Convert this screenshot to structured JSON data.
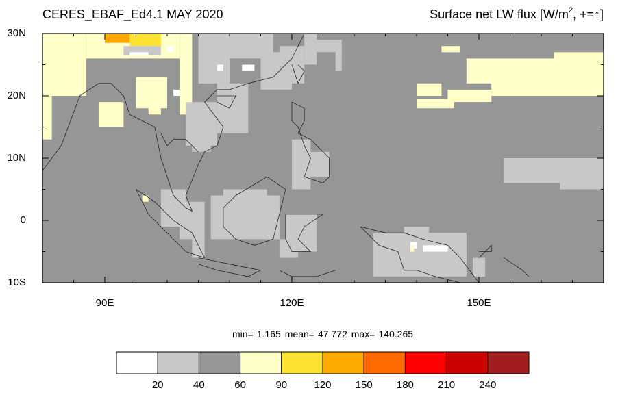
{
  "map": {
    "title_left": "CERES_EBAF_Ed4.1 MAY 2020",
    "title_right": [
      "Surface net LW flux [W/m",
      "2",
      ", +=↑]"
    ],
    "lon_range": [
      80,
      170
    ],
    "lat_range": [
      -10,
      30
    ],
    "lon_ticks": [
      {
        "value": 90,
        "label": "90E"
      },
      {
        "value": 120,
        "label": "120E"
      },
      {
        "value": 150,
        "label": "150E"
      }
    ],
    "lat_ticks": [
      {
        "value": 30,
        "label": "30N"
      },
      {
        "value": 20,
        "label": "20N"
      },
      {
        "value": 10,
        "label": "10N"
      },
      {
        "value": 0,
        "label": "0"
      },
      {
        "value": -10,
        "label": "10S"
      }
    ],
    "stats": [
      {
        "label": "min=",
        "value": 1.165
      },
      {
        "label": "mean=",
        "value": 47.772
      },
      {
        "label": "max=",
        "value": 140.265
      }
    ],
    "colorbar": {
      "levels": [
        20,
        40,
        60,
        90,
        120,
        150,
        180,
        210,
        240
      ],
      "colors": [
        "#ffffff",
        "#c8c8c8",
        "#969696",
        "#ffffc8",
        "#fde232",
        "#ffa800",
        "#ff6a00",
        "#ff0000",
        "#cc0000",
        "#a01e1e"
      ]
    }
  }
}
